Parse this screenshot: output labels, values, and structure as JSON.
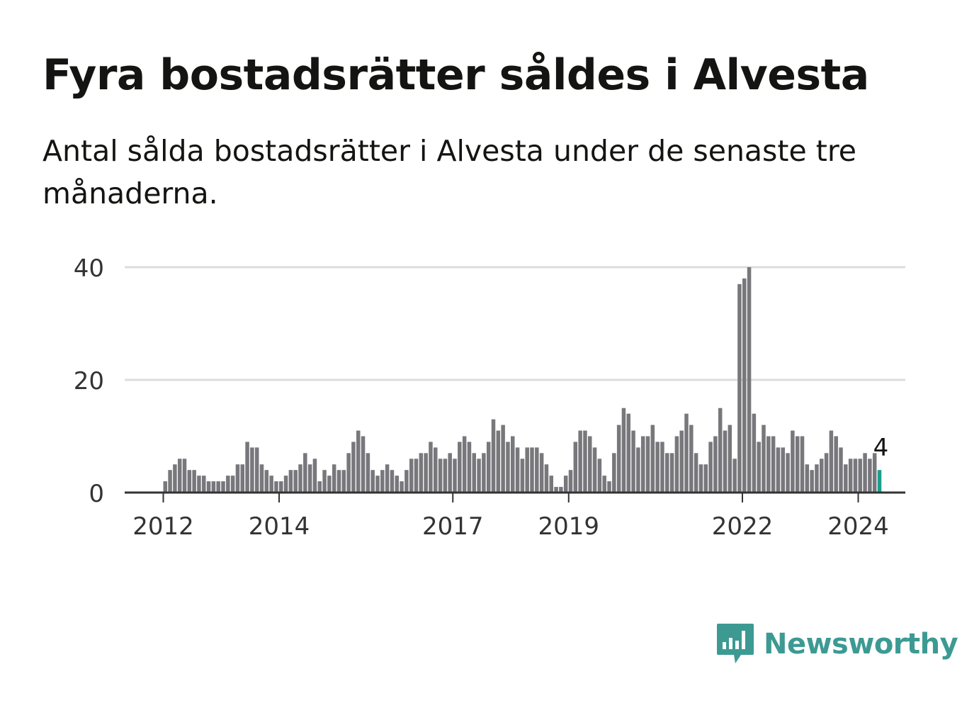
{
  "title": "Fyra bostadsrätter såldes i Alvesta",
  "subtitle": "Antal sålda bostadsrätter i Alvesta under de senaste tre månaderna.",
  "brand": {
    "name": "Newsworthy",
    "color": "#3c9a93",
    "icon": "newsworthy-chart-bubble-icon"
  },
  "chart_data": {
    "type": "bar",
    "title": "Fyra bostadsrätter såldes i Alvesta",
    "xlabel": "",
    "ylabel": "",
    "ylim": [
      0,
      40
    ],
    "yticks": [
      0,
      20,
      40
    ],
    "xticks": [
      "2012",
      "2014",
      "2017",
      "2019",
      "2022",
      "2024"
    ],
    "grid": true,
    "bar_color": "#78777c",
    "highlight_color": "#1b9e8f",
    "annotation": "4",
    "start_month": "2011-01",
    "values": [
      0,
      0,
      0,
      0,
      0,
      0,
      0,
      0,
      0,
      0,
      0,
      0,
      2,
      4,
      5,
      6,
      6,
      4,
      4,
      3,
      3,
      2,
      2,
      2,
      2,
      3,
      3,
      5,
      5,
      9,
      8,
      8,
      5,
      4,
      3,
      2,
      2,
      3,
      4,
      4,
      5,
      7,
      5,
      6,
      2,
      4,
      3,
      5,
      4,
      4,
      7,
      9,
      11,
      10,
      7,
      4,
      3,
      4,
      5,
      4,
      3,
      2,
      4,
      6,
      6,
      7,
      7,
      9,
      8,
      6,
      6,
      7,
      6,
      9,
      10,
      9,
      7,
      6,
      7,
      9,
      13,
      11,
      12,
      9,
      10,
      8,
      6,
      8,
      8,
      8,
      7,
      5,
      3,
      1,
      1,
      3,
      4,
      9,
      11,
      11,
      10,
      8,
      6,
      3,
      2,
      7,
      12,
      15,
      14,
      11,
      8,
      10,
      10,
      12,
      9,
      9,
      7,
      7,
      10,
      11,
      14,
      12,
      7,
      5,
      5,
      9,
      10,
      15,
      11,
      12,
      6,
      37,
      38,
      40,
      14,
      9,
      12,
      10,
      10,
      8,
      8,
      7,
      11,
      10,
      10,
      5,
      4,
      5,
      6,
      7,
      11,
      10,
      8,
      5,
      6,
      6,
      6,
      7,
      6,
      7,
      4
    ]
  }
}
